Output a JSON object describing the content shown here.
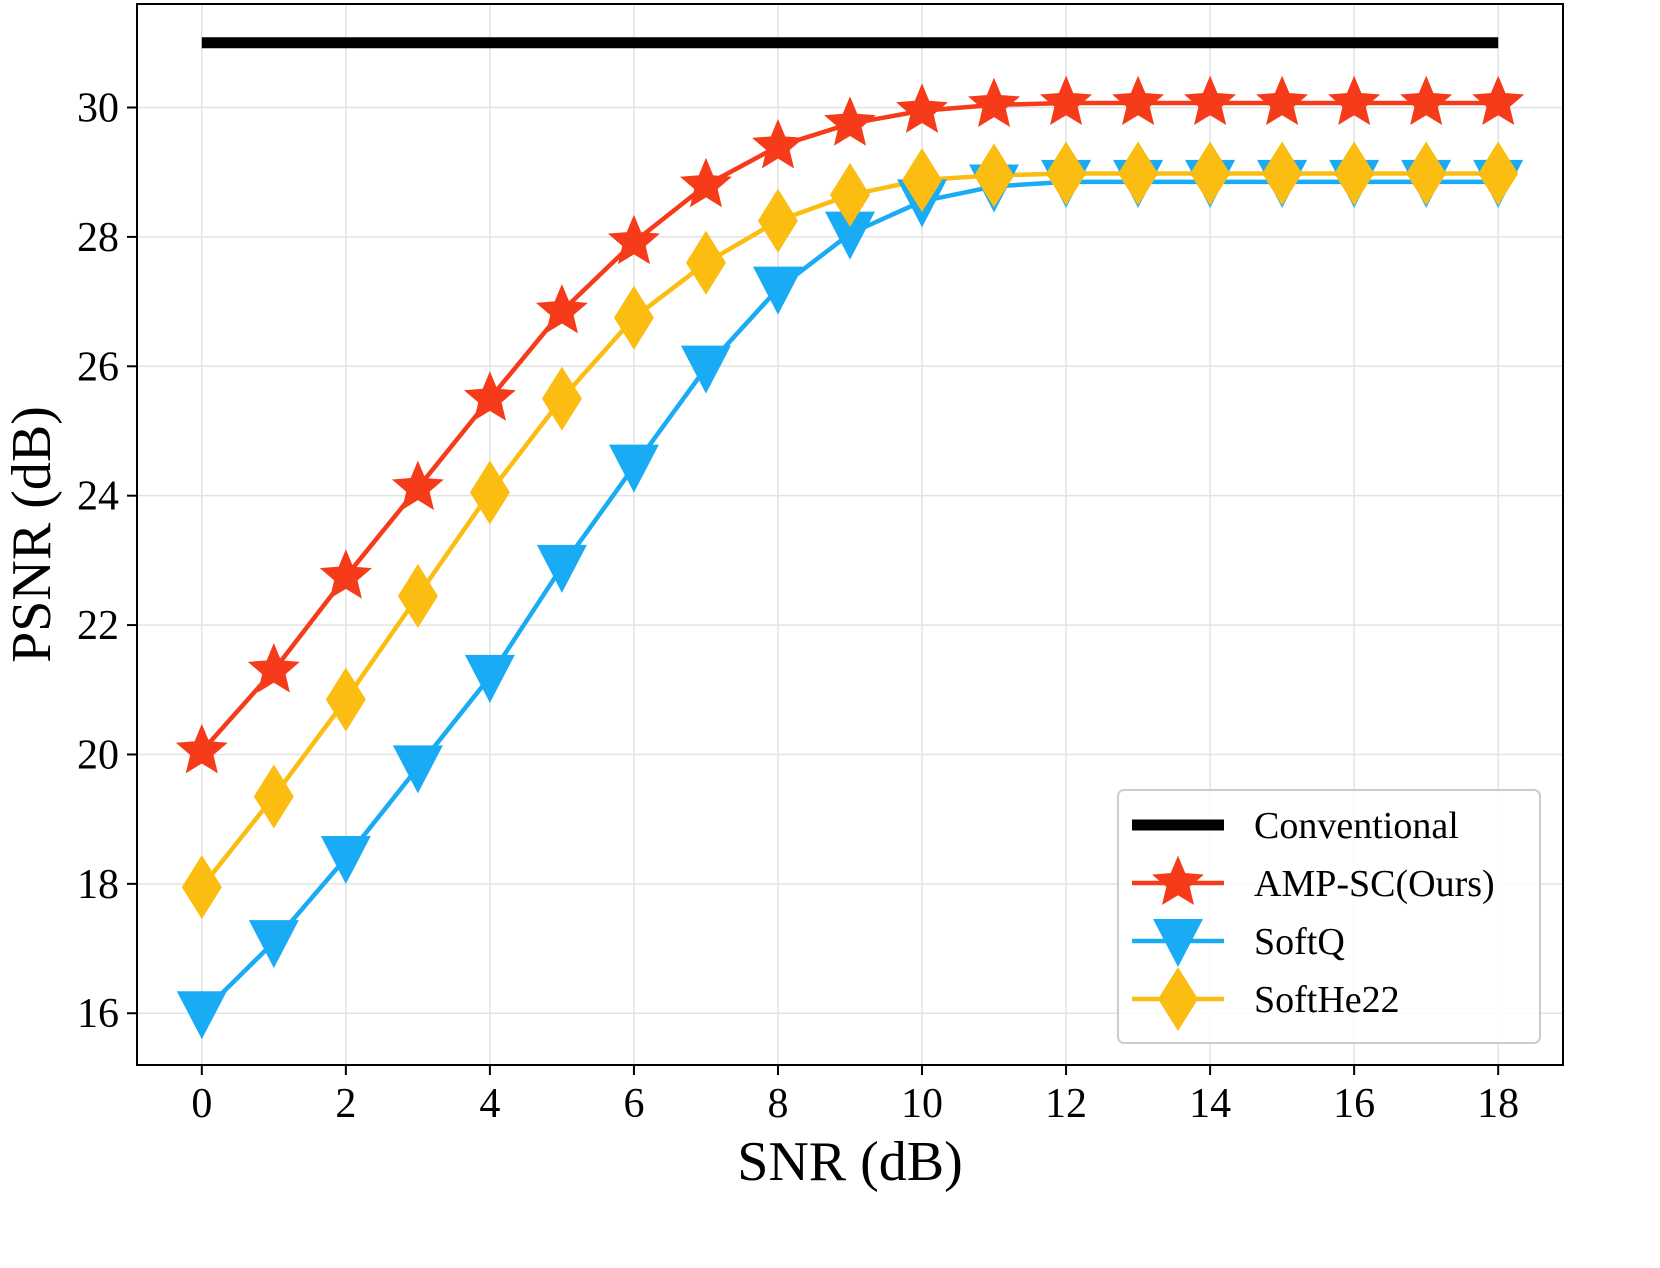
{
  "chart_data": {
    "type": "line",
    "xlabel": "SNR (dB)",
    "ylabel": "PSNR (dB)",
    "xlim": [
      -0.9,
      18.9
    ],
    "ylim": [
      15.2,
      31.6
    ],
    "xticks": [
      0,
      2,
      4,
      6,
      8,
      10,
      12,
      14,
      16,
      18
    ],
    "yticks": [
      16,
      18,
      20,
      22,
      24,
      26,
      28,
      30
    ],
    "grid": true,
    "legend_position": "lower-right",
    "x": [
      0,
      1,
      2,
      3,
      4,
      5,
      6,
      7,
      8,
      9,
      10,
      11,
      12,
      13,
      14,
      15,
      16,
      17,
      18
    ],
    "series": [
      {
        "name": "Conventional",
        "color": "#000000",
        "marker": "none",
        "values": [
          31.0,
          31.0,
          31.0,
          31.0,
          31.0,
          31.0,
          31.0,
          31.0,
          31.0,
          31.0,
          31.0,
          31.0,
          31.0,
          31.0,
          31.0,
          31.0,
          31.0,
          31.0,
          31.0
        ]
      },
      {
        "name": "AMP-SC(Ours)",
        "color": "#f53b1a",
        "marker": "star",
        "values": [
          20.05,
          21.3,
          22.75,
          24.12,
          25.5,
          26.85,
          27.92,
          28.8,
          29.4,
          29.75,
          29.95,
          30.04,
          30.07,
          30.07,
          30.07,
          30.07,
          30.07,
          30.07,
          30.07
        ]
      },
      {
        "name": "SoftQ",
        "color": "#1aabf5",
        "marker": "triangle-down",
        "values": [
          16.0,
          17.1,
          18.4,
          19.8,
          21.2,
          22.9,
          24.45,
          25.98,
          27.2,
          28.05,
          28.55,
          28.78,
          28.85,
          28.85,
          28.85,
          28.85,
          28.85,
          28.85,
          28.85
        ]
      },
      {
        "name": "SoftHe22",
        "color": "#fbbd12",
        "marker": "diamond",
        "values": [
          17.95,
          19.35,
          20.85,
          22.45,
          24.05,
          25.5,
          26.75,
          27.6,
          28.25,
          28.65,
          28.88,
          28.95,
          28.98,
          28.98,
          28.98,
          28.98,
          28.98,
          28.98,
          28.98
        ]
      }
    ]
  }
}
